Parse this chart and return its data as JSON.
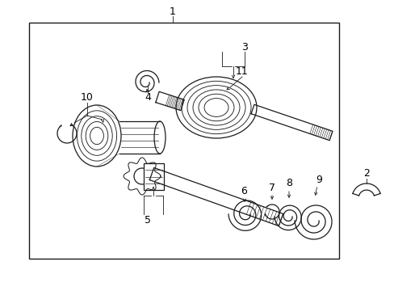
{
  "bg_color": "#ffffff",
  "line_color": "#1a1a1a",
  "fig_w": 4.89,
  "fig_h": 3.6,
  "dpi": 100,
  "lw": 0.9,
  "fs": 9
}
